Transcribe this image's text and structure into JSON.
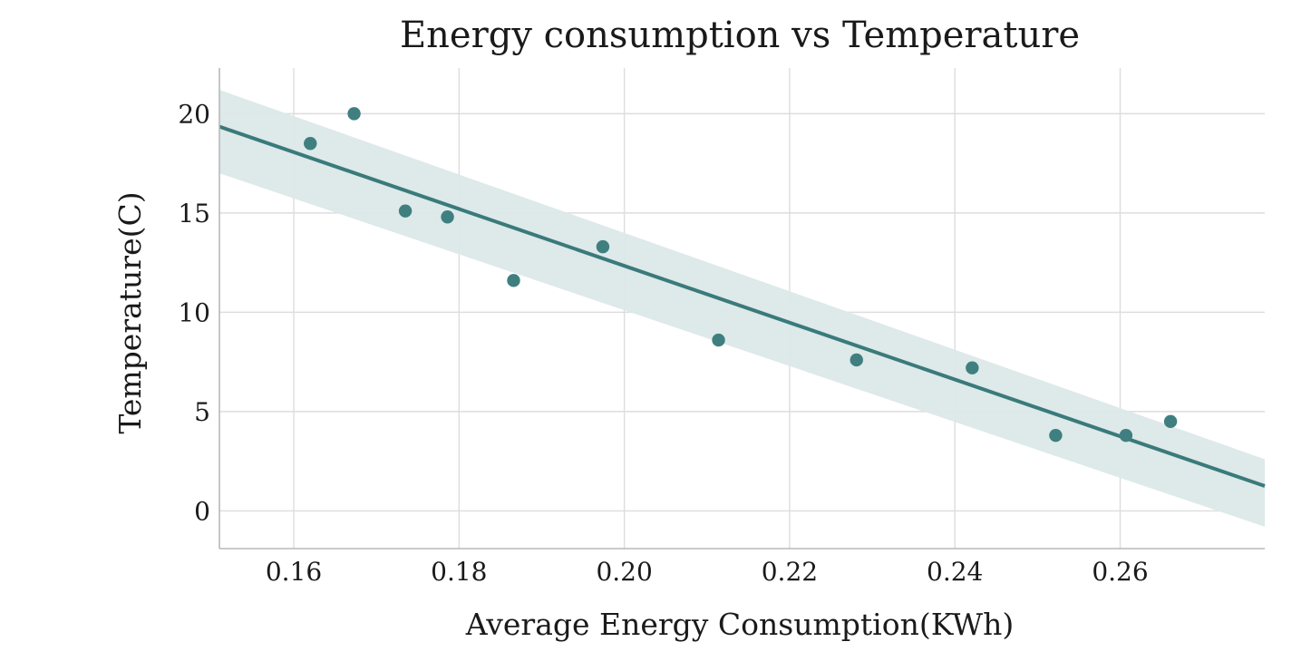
{
  "chart_data": {
    "type": "scatter",
    "title": "Energy consumption vs Temperature",
    "xlabel": "Average Energy Consumption(KWh)",
    "ylabel": "Temperature(C)",
    "xlim": [
      0.151,
      0.2775
    ],
    "ylim": [
      -1.9,
      22.3
    ],
    "x_ticks": [
      0.16,
      0.18,
      0.2,
      0.22,
      0.24,
      0.26
    ],
    "x_tick_labels": [
      "0.16",
      "0.18",
      "0.20",
      "0.22",
      "0.24",
      "0.26"
    ],
    "y_ticks": [
      0,
      5,
      10,
      15,
      20
    ],
    "y_tick_labels": [
      "0",
      "5",
      "10",
      "15",
      "20"
    ],
    "grid": true,
    "points": [
      {
        "x": 0.162,
        "y": 18.5
      },
      {
        "x": 0.1673,
        "y": 20.0
      },
      {
        "x": 0.1735,
        "y": 15.1
      },
      {
        "x": 0.1786,
        "y": 14.8
      },
      {
        "x": 0.1866,
        "y": 11.6
      },
      {
        "x": 0.1974,
        "y": 13.3
      },
      {
        "x": 0.2114,
        "y": 8.6
      },
      {
        "x": 0.2281,
        "y": 7.6
      },
      {
        "x": 0.2421,
        "y": 7.2
      },
      {
        "x": 0.2522,
        "y": 3.8
      },
      {
        "x": 0.2607,
        "y": 3.8
      },
      {
        "x": 0.2661,
        "y": 4.5
      }
    ],
    "regression": {
      "line": [
        [
          0.151,
          19.35
        ],
        [
          0.2775,
          1.25
        ]
      ],
      "ci_upper": [
        [
          0.151,
          21.2
        ],
        [
          0.2775,
          2.6
        ]
      ],
      "ci_lower": [
        [
          0.151,
          17.0
        ],
        [
          0.2775,
          -0.8
        ]
      ]
    },
    "colors": {
      "point": "#3f7f7f",
      "line": "#3a7a7a",
      "band": "#dce8e8",
      "grid": "#dddddd",
      "text": "#1a1a1a"
    }
  }
}
